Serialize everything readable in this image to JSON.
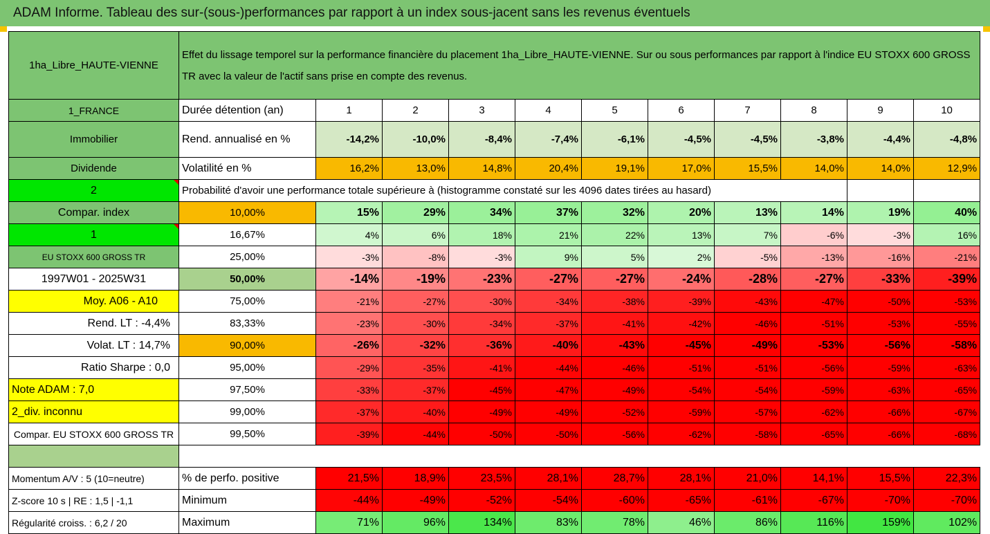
{
  "title": "ADAM Informe. Tableau des sur-(sous-)performances par rapport à un index sous-jacent sans les revenus éventuels",
  "header": {
    "fund": "1ha_Libre_HAUTE-VIENNE",
    "description": "Effet du lissage temporel sur la performance financière du placement 1ha_Libre_HAUTE-VIENNE. Sur ou sous performances par rapport à l'indice EU STOXX 600 GROSS TR avec la valeur de l'actif sans prise en compte des revenus."
  },
  "years_row": {
    "left": "1_FRANCE",
    "label": "Durée détention (an)",
    "years": [
      "1",
      "2",
      "3",
      "4",
      "5",
      "6",
      "7",
      "8",
      "9",
      "10"
    ]
  },
  "rend_row": {
    "left": "Immobilier",
    "label": "Rend. annualisé en %",
    "values": [
      "-14,2%",
      "-10,0%",
      "-8,4%",
      "-7,4%",
      "-6,1%",
      "-4,5%",
      "-4,5%",
      "-3,8%",
      "-4,4%",
      "-4,8%"
    ]
  },
  "vol_row": {
    "left": "Dividende",
    "label": "Volatilité en %",
    "values": [
      "16,2%",
      "13,0%",
      "14,8%",
      "20,4%",
      "19,1%",
      "17,0%",
      "15,5%",
      "14,0%",
      "14,0%",
      "12,9%"
    ]
  },
  "prob_row": {
    "left": "2",
    "text": "Probabilité d'avoir une performance totale supérieure à (histogramme constaté sur les 4096 dates tirées au hasard)"
  },
  "quantiles": [
    {
      "left": "Compar. index",
      "pct": "10,00%",
      "values": [
        "15%",
        "29%",
        "34%",
        "37%",
        "32%",
        "20%",
        "13%",
        "14%",
        "19%",
        "40%"
      ]
    },
    {
      "left": "1",
      "pct": "16,67%",
      "values": [
        "4%",
        "6%",
        "18%",
        "21%",
        "22%",
        "13%",
        "7%",
        "-6%",
        "-3%",
        "16%"
      ]
    },
    {
      "left": "EU STOXX 600 GROSS TR",
      "pct": "25,00%",
      "values": [
        "-3%",
        "-8%",
        "-3%",
        "9%",
        "5%",
        "2%",
        "-5%",
        "-13%",
        "-16%",
        "-21%"
      ]
    },
    {
      "left": "1997W01 - 2025W31",
      "pct": "50,00%",
      "values": [
        "-14%",
        "-19%",
        "-23%",
        "-27%",
        "-27%",
        "-24%",
        "-28%",
        "-27%",
        "-33%",
        "-39%"
      ]
    },
    {
      "left": "Moy. A06 - A10",
      "pct": "75,00%",
      "values": [
        "-21%",
        "-27%",
        "-30%",
        "-34%",
        "-38%",
        "-39%",
        "-43%",
        "-47%",
        "-50%",
        "-53%"
      ]
    },
    {
      "left": "Rend. LT :   -4,4%",
      "pct": "83,33%",
      "values": [
        "-23%",
        "-30%",
        "-34%",
        "-37%",
        "-41%",
        "-42%",
        "-46%",
        "-51%",
        "-53%",
        "-55%"
      ]
    },
    {
      "left": "Volat. LT :   14,7%",
      "pct": "90,00%",
      "values": [
        "-26%",
        "-32%",
        "-36%",
        "-40%",
        "-43%",
        "-45%",
        "-49%",
        "-53%",
        "-56%",
        "-58%"
      ]
    },
    {
      "left": "Ratio Sharpe :    0,0",
      "pct": "95,00%",
      "values": [
        "-29%",
        "-35%",
        "-41%",
        "-44%",
        "-46%",
        "-51%",
        "-51%",
        "-56%",
        "-59%",
        "-63%"
      ]
    },
    {
      "left": "Note ADAM : 7,0",
      "pct": "97,50%",
      "values": [
        "-33%",
        "-37%",
        "-45%",
        "-47%",
        "-49%",
        "-54%",
        "-54%",
        "-59%",
        "-63%",
        "-65%"
      ]
    },
    {
      "left": "2_div. inconnu",
      "pct": "99,00%",
      "values": [
        "-37%",
        "-40%",
        "-49%",
        "-49%",
        "-52%",
        "-59%",
        "-57%",
        "-62%",
        "-66%",
        "-67%"
      ]
    },
    {
      "left": "Compar. EU STOXX 600 GROSS TR",
      "pct": "99,50%",
      "values": [
        "-39%",
        "-44%",
        "-50%",
        "-50%",
        "-56%",
        "-62%",
        "-58%",
        "-65%",
        "-66%",
        "-68%"
      ]
    }
  ],
  "footer": [
    {
      "left": "Momentum A/V : 5 (10=neutre)",
      "label": "% de perfo. positive",
      "values": [
        "21,5%",
        "18,9%",
        "23,5%",
        "28,1%",
        "28,7%",
        "28,1%",
        "21,0%",
        "14,1%",
        "15,5%",
        "22,3%"
      ]
    },
    {
      "left": "Z-score 10 s  |  RE : 1,5  |  -1,1",
      "label": "Minimum",
      "values": [
        "-44%",
        "-49%",
        "-52%",
        "-54%",
        "-60%",
        "-65%",
        "-61%",
        "-67%",
        "-70%",
        "-70%"
      ]
    },
    {
      "left": "Régularité croiss. : 6,2 / 20",
      "label": "Maximum",
      "values": [
        "71%",
        "96%",
        "134%",
        "83%",
        "78%",
        "46%",
        "86%",
        "116%",
        "159%",
        "102%"
      ]
    }
  ],
  "colors": {
    "header_green": "#7dc472",
    "light_green": "#a9d18e",
    "bright_green": "#00e600",
    "yellow": "#ffff00",
    "orange": "#f9b900",
    "red": "#ff0000"
  }
}
